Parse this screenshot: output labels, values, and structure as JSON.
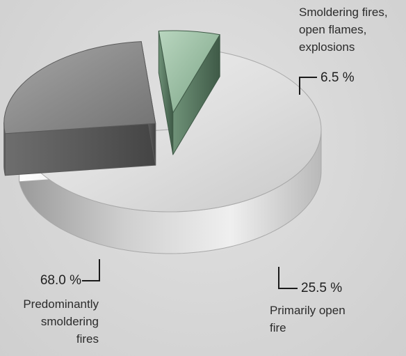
{
  "chart_data": {
    "type": "pie",
    "style": "3d-exploded",
    "slices": [
      {
        "value": 68.0,
        "value_label": "68.0 %",
        "label_lines": [
          "Predominantly",
          "smoldering",
          "fires"
        ],
        "color": "#dcdcdc"
      },
      {
        "value": 25.5,
        "value_label": "25.5 %",
        "label_lines": [
          "Primarily open",
          "fire"
        ],
        "color": "#8a8a8a"
      },
      {
        "value": 6.5,
        "value_label": "6.5 %",
        "label_lines": [
          "Smoldering fires,",
          "open flames,",
          "explosions"
        ],
        "color": "#8fb79a"
      }
    ]
  }
}
